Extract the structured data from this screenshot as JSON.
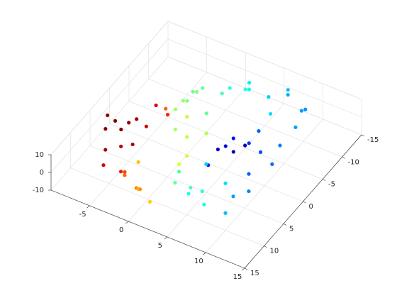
{
  "chart_data": {
    "type": "scatter3d",
    "x": [
      -8,
      -7,
      -6,
      -7.5,
      -5.5,
      -8.5,
      -6.5,
      -5,
      -7,
      -6,
      -5,
      -4,
      -3.5,
      -5.5,
      -3,
      -1,
      0,
      -2,
      1,
      -4,
      0.5,
      -1.5,
      0,
      1,
      -1,
      2,
      0.5,
      -0.5,
      -3,
      -2,
      -4,
      -1,
      -2.5,
      0,
      -3.5,
      -1.5,
      0,
      2,
      4,
      6,
      8,
      3,
      5,
      7,
      9,
      1,
      4,
      5,
      6,
      7,
      3.5,
      8,
      5.5,
      6.5,
      9,
      10,
      4.5,
      9,
      10,
      11,
      8.5,
      6,
      8,
      4,
      7,
      5,
      3,
      9,
      2,
      5.5
    ],
    "y": [
      5,
      7,
      3,
      2,
      6,
      3.5,
      8.5,
      4,
      4.5,
      1,
      -2,
      -3,
      -1.5,
      -0.5,
      10,
      11,
      12.5,
      12,
      11.5,
      9,
      13,
      9.5,
      0,
      2,
      1,
      -1,
      3,
      -1,
      -6,
      -8,
      -5,
      -7,
      -4,
      -9,
      -8.5,
      -5.5,
      -11,
      -12,
      -13,
      -14,
      -13.5,
      -10,
      -11.5,
      -12,
      -12.5,
      -13,
      0,
      -2,
      -4,
      -1,
      1.5,
      -3,
      1,
      -5.5,
      -6,
      -8,
      -3,
      2,
      4,
      0,
      5,
      8,
      6,
      7,
      9.5,
      5,
      9,
      8,
      6,
      10.5
    ],
    "z": [
      3,
      -2,
      5,
      -4,
      0,
      6,
      -6,
      -3,
      8,
      2,
      4,
      -2,
      6,
      -5,
      0,
      -3,
      2,
      5,
      -6,
      -4,
      4,
      7,
      0,
      -4,
      5,
      3,
      -7,
      8,
      0,
      4,
      -4,
      -6,
      6,
      2,
      -2,
      9,
      0,
      4,
      -3,
      2,
      -5,
      7,
      -7,
      6,
      0,
      -4,
      0,
      3,
      -3,
      5,
      -6,
      -2,
      7,
      1,
      -4,
      3,
      -8,
      0,
      -3,
      4,
      -6,
      0,
      3,
      -4,
      -2,
      6,
      2,
      -7,
      -1,
      4
    ],
    "colors": [
      "#800000",
      "#a00000",
      "#900000",
      "#800000",
      "#c00000",
      "#900000",
      "#d00000",
      "#b00000",
      "#800000",
      "#a00000",
      "#e00000",
      "#ff2000",
      "#ff6000",
      "#d00000",
      "#ff4000",
      "#ff8000",
      "#ffb000",
      "#ff6000",
      "#ffd000",
      "#e02000",
      "#ff9000",
      "#ffc000",
      "#c0ff40",
      "#d0ff30",
      "#a0ff60",
      "#b0ff50",
      "#e0ff20",
      "#c0ff40",
      "#80ff80",
      "#60ff9f",
      "#a0ff60",
      "#60ff9f",
      "#90ff70",
      "#40ffbf",
      "#70ff90",
      "#80ff80",
      "#20ffdf",
      "#00f0ff",
      "#00d0ff",
      "#00c0ff",
      "#00a0ff",
      "#10ffef",
      "#00e0ff",
      "#00b0ff",
      "#0090ff",
      "#20ffdf",
      "#0000d0",
      "#0010ff",
      "#0030ff",
      "#0000c0",
      "#0020ff",
      "#0050ff",
      "#0000e0",
      "#0060ff",
      "#0080ff",
      "#00a0ff",
      "#0000b0",
      "#0060ff",
      "#0080ff",
      "#0070ff",
      "#00a0ff",
      "#20ffdf",
      "#00e0ff",
      "#40ffbf",
      "#10ffef",
      "#00d0ff",
      "#60ff9f",
      "#00c0ff",
      "#40ffbf",
      "#20ffdf"
    ],
    "xlim": [
      -10,
      15
    ],
    "ylim": [
      -15,
      15
    ],
    "zlim": [
      -10,
      10
    ],
    "xticks": [
      -5,
      0,
      5,
      10,
      15
    ],
    "yticks": [
      -15,
      -10,
      -5,
      0,
      5,
      10,
      15
    ],
    "zticks": [
      -10,
      0,
      10
    ],
    "grid": true
  }
}
